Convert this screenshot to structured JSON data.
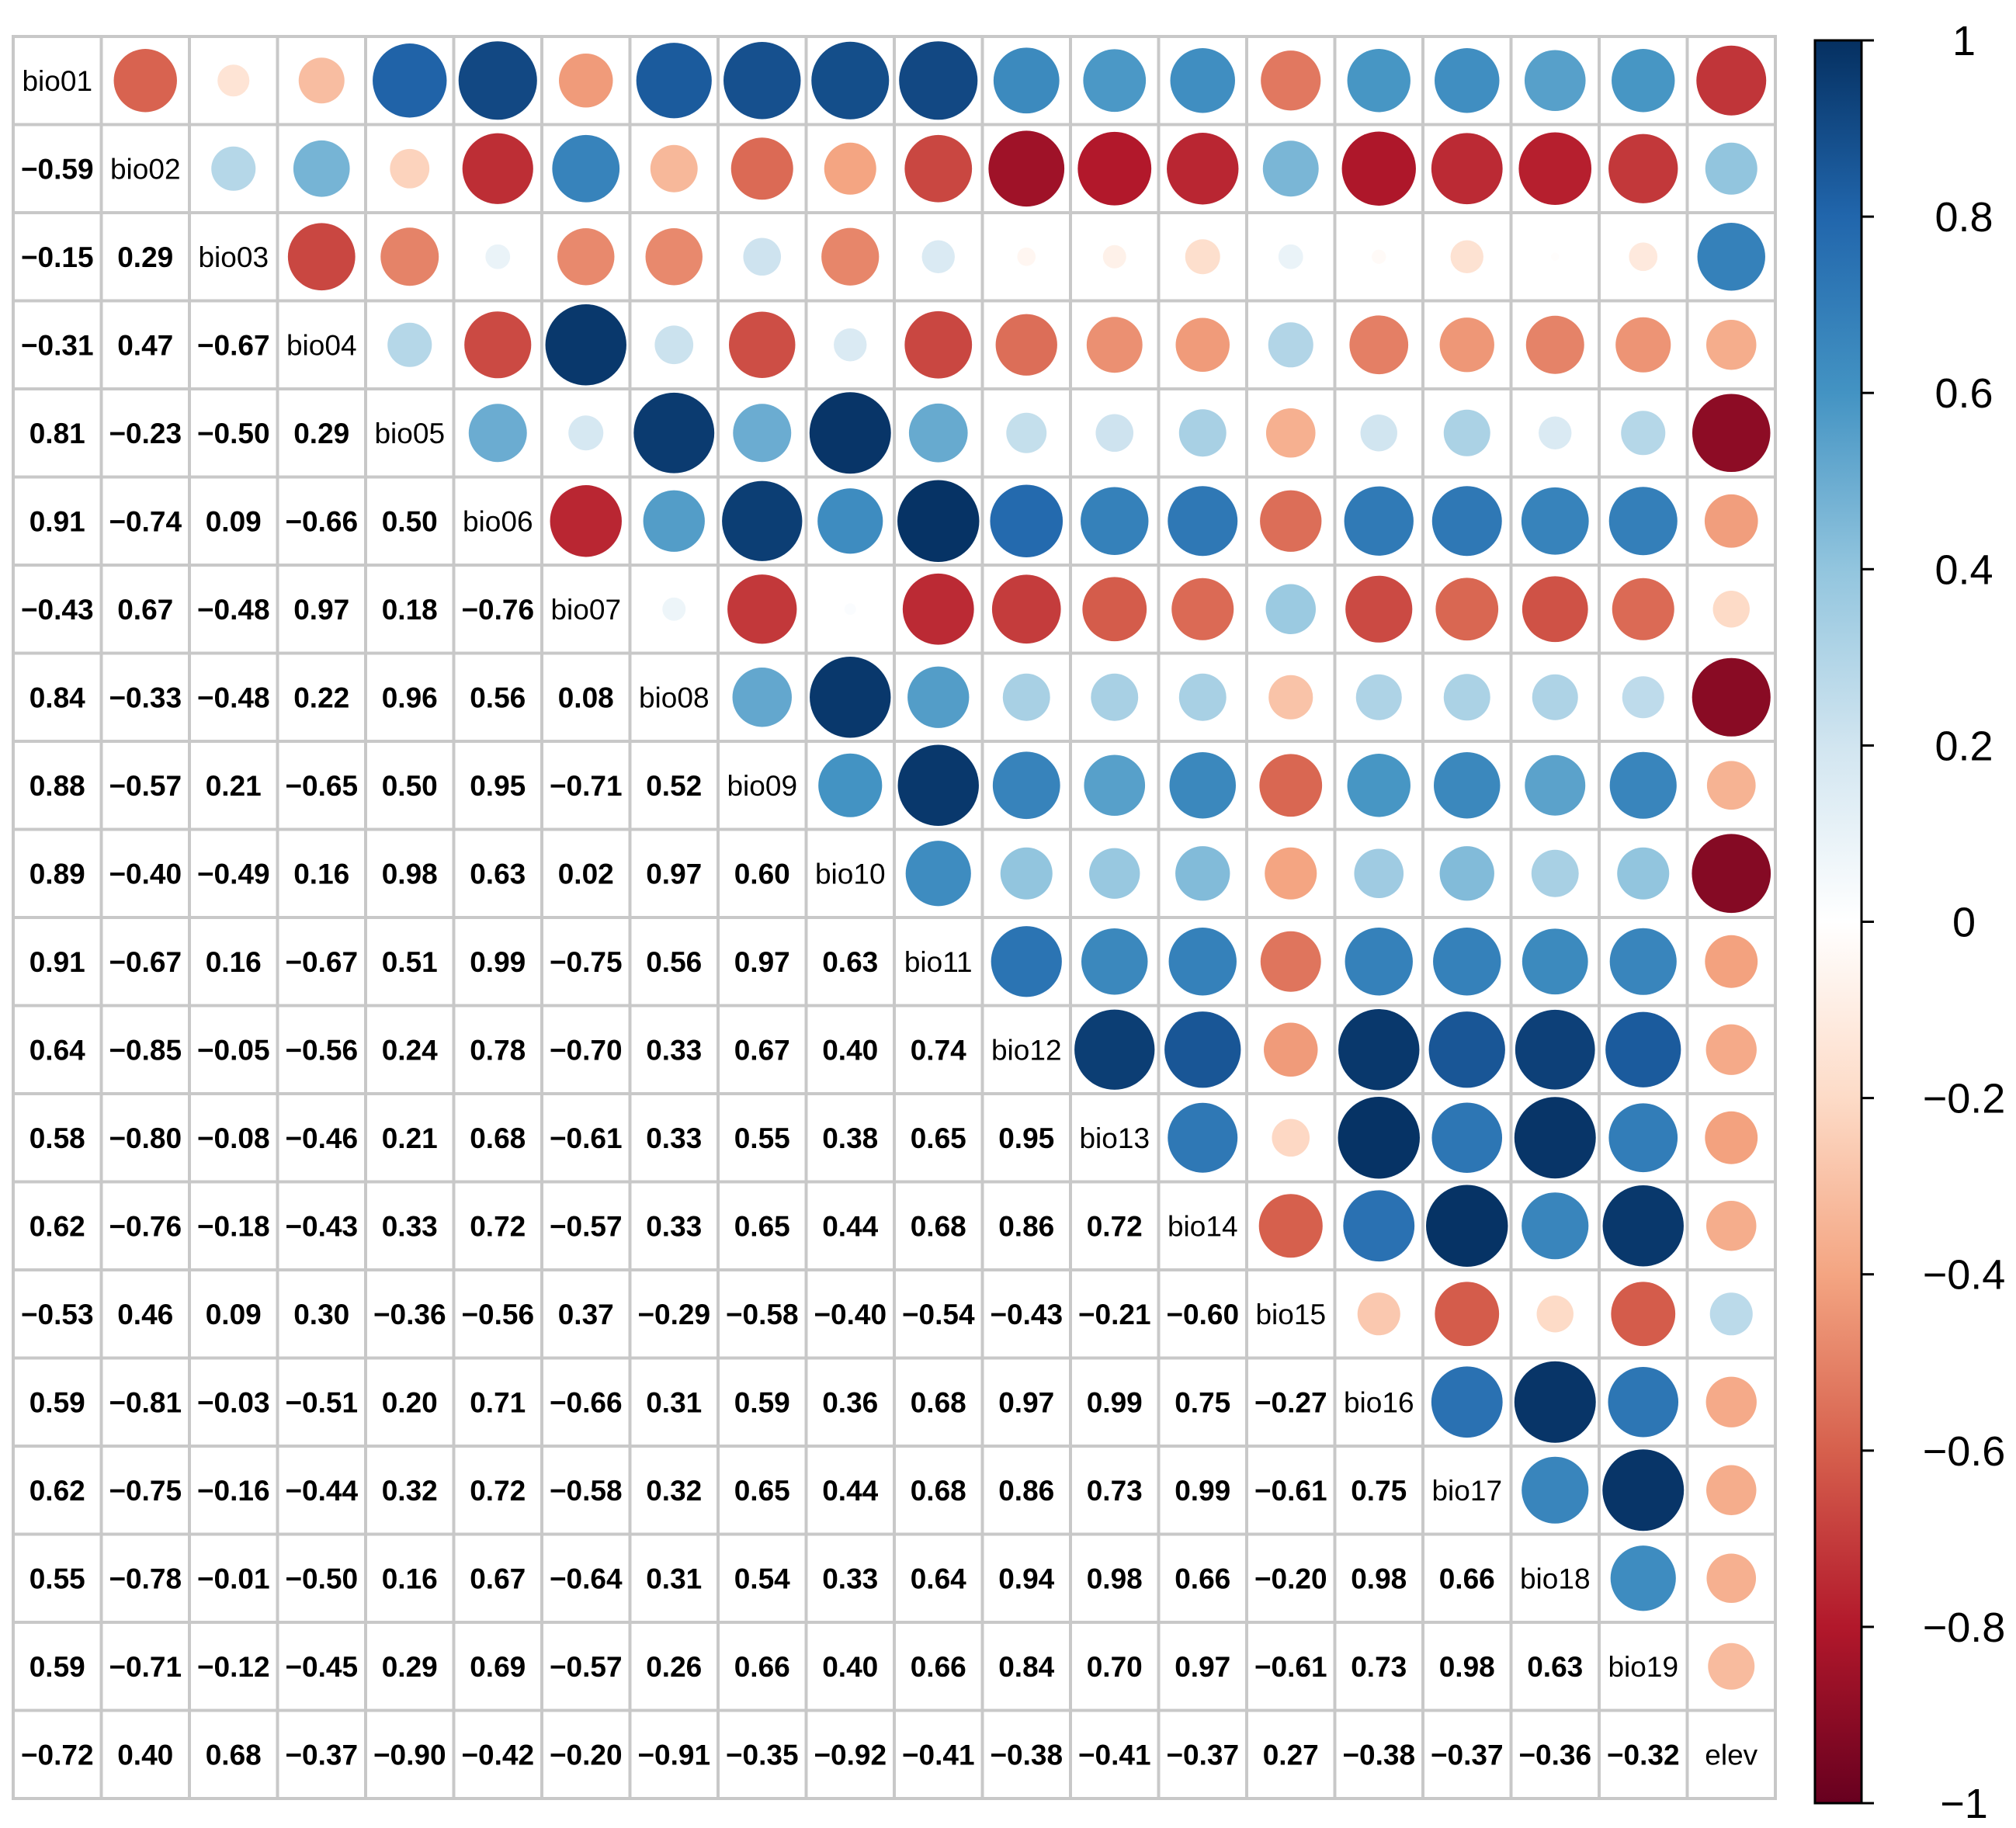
{
  "chart_data": {
    "type": "heatmap",
    "title": "",
    "variables": [
      "bio01",
      "bio02",
      "bio03",
      "bio04",
      "bio05",
      "bio06",
      "bio07",
      "bio08",
      "bio09",
      "bio10",
      "bio11",
      "bio12",
      "bio13",
      "bio14",
      "bio15",
      "bio16",
      "bio17",
      "bio18",
      "bio19",
      "elev"
    ],
    "lower_values": [
      [],
      [
        -0.59
      ],
      [
        -0.15,
        0.29
      ],
      [
        -0.31,
        0.47,
        -0.67
      ],
      [
        0.81,
        -0.23,
        -0.5,
        0.29
      ],
      [
        0.91,
        -0.74,
        0.09,
        -0.66,
        0.5
      ],
      [
        -0.43,
        0.67,
        -0.48,
        0.97,
        0.18,
        -0.76
      ],
      [
        0.84,
        -0.33,
        -0.48,
        0.22,
        0.96,
        0.56,
        0.08
      ],
      [
        0.88,
        -0.57,
        0.21,
        -0.65,
        0.5,
        0.95,
        -0.71,
        0.52
      ],
      [
        0.89,
        -0.4,
        -0.49,
        0.16,
        0.98,
        0.63,
        0.02,
        0.97,
        0.6
      ],
      [
        0.91,
        -0.67,
        0.16,
        -0.67,
        0.51,
        0.99,
        -0.75,
        0.56,
        0.97,
        0.63
      ],
      [
        0.64,
        -0.85,
        -0.05,
        -0.56,
        0.24,
        0.78,
        -0.7,
        0.33,
        0.67,
        0.4,
        0.74
      ],
      [
        0.58,
        -0.8,
        -0.08,
        -0.46,
        0.21,
        0.68,
        -0.61,
        0.33,
        0.55,
        0.38,
        0.65,
        0.95
      ],
      [
        0.62,
        -0.76,
        -0.18,
        -0.43,
        0.33,
        0.72,
        -0.57,
        0.33,
        0.65,
        0.44,
        0.68,
        0.86,
        0.72
      ],
      [
        -0.53,
        0.46,
        0.09,
        0.3,
        -0.36,
        -0.56,
        0.37,
        -0.29,
        -0.58,
        -0.4,
        -0.54,
        -0.43,
        -0.21,
        -0.6
      ],
      [
        0.59,
        -0.81,
        -0.03,
        -0.51,
        0.2,
        0.71,
        -0.66,
        0.31,
        0.59,
        0.36,
        0.68,
        0.97,
        0.99,
        0.75,
        -0.27
      ],
      [
        0.62,
        -0.75,
        -0.16,
        -0.44,
        0.32,
        0.72,
        -0.58,
        0.32,
        0.65,
        0.44,
        0.68,
        0.86,
        0.73,
        0.99,
        -0.61,
        0.75
      ],
      [
        0.55,
        -0.78,
        -0.01,
        -0.5,
        0.16,
        0.67,
        -0.64,
        0.31,
        0.54,
        0.33,
        0.64,
        0.94,
        0.98,
        0.66,
        -0.2,
        0.98,
        0.66
      ],
      [
        0.59,
        -0.71,
        -0.12,
        -0.45,
        0.29,
        0.69,
        -0.57,
        0.26,
        0.66,
        0.4,
        0.66,
        0.84,
        0.7,
        0.97,
        -0.61,
        0.73,
        0.98,
        0.63
      ],
      [
        -0.72,
        0.4,
        0.68,
        -0.37,
        -0.9,
        -0.42,
        -0.2,
        -0.91,
        -0.35,
        -0.92,
        -0.41,
        -0.38,
        -0.41,
        -0.37,
        0.27,
        -0.38,
        -0.37,
        -0.36,
        -0.32
      ]
    ],
    "upper_display": "circles sized and colored by correlation value",
    "lower_display": "numbers",
    "diagonal_display": "variable names",
    "colorbar": {
      "range": [
        -1,
        1
      ],
      "ticks": [
        1,
        0.8,
        0.6,
        0.4,
        0.2,
        0,
        -0.2,
        -0.4,
        -0.6,
        -0.8,
        -1
      ],
      "tick_labels": [
        "1",
        "0.8",
        "0.6",
        "0.4",
        "0.2",
        "0",
        "−0.2",
        "−0.4",
        "−0.6",
        "−0.8",
        "−1"
      ],
      "colors": [
        "#67001f",
        "#b2182b",
        "#d6604d",
        "#f4a582",
        "#fddbc7",
        "#ffffff",
        "#d1e5f0",
        "#92c5de",
        "#4393c3",
        "#2166ac",
        "#053061"
      ]
    }
  }
}
